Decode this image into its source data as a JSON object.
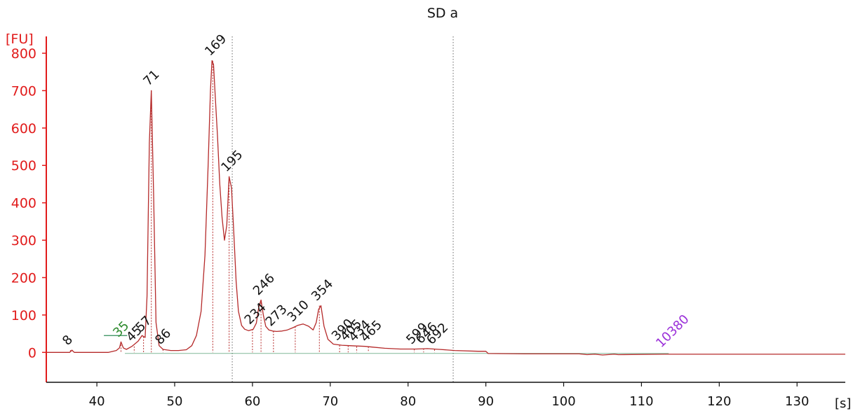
{
  "chart_data": {
    "type": "line",
    "title": "SD a",
    "ylabel": "[FU]",
    "xlabel": "[s]",
    "xlim": [
      33.5,
      136.2
    ],
    "ylim": [
      -80,
      845
    ],
    "x_ticks": [
      40,
      50,
      60,
      70,
      80,
      90,
      100,
      110,
      120,
      130
    ],
    "y_ticks": [
      0,
      100,
      200,
      300,
      400,
      500,
      600,
      700,
      800
    ],
    "colors": {
      "axis": "#e11b1b",
      "trace": "#b52a2a",
      "baseline": "#2e8b57",
      "marker_label": "#2e8b2e",
      "upper_marker_label": "#9b30d9",
      "peak_label": "#111111"
    },
    "series": [
      {
        "x": [
          33.5,
          36.5,
          36.8,
          37.1,
          41.5,
          42.5,
          42.9,
          43.1,
          43.4,
          43.8,
          44.5,
          45.3,
          45.8,
          46.2,
          46.45,
          46.75,
          47.0,
          47.3,
          47.6,
          48.0,
          48.5,
          49.5,
          50.5,
          51.5,
          52.2,
          52.8,
          53.4,
          53.9,
          54.3,
          54.6,
          54.8,
          55.0,
          55.2,
          55.5,
          55.8,
          56.1,
          56.4,
          56.7,
          57.0,
          57.3,
          57.6,
          57.9,
          58.2,
          58.6,
          59.0,
          59.5,
          60.1,
          60.5,
          60.8,
          61.1,
          61.4,
          61.7,
          62.1,
          62.6,
          63.1,
          63.8,
          64.5,
          65.2,
          65.8,
          66.5,
          67.2,
          67.8,
          68.2,
          68.5,
          68.8,
          69.2,
          69.7,
          70.4,
          71.5,
          72.5,
          73.5,
          74.5,
          75.5,
          77.0,
          79.0,
          81.0,
          82.5,
          84.0,
          86.0,
          89.0,
          90.0,
          90.3,
          95.0,
          102.0,
          103.0,
          104.0,
          105.0,
          106.5,
          107.0,
          113.0,
          120.0,
          130.0,
          136.2
        ],
        "y": [
          0,
          0,
          6,
          0,
          0,
          5,
          12,
          28,
          12,
          8,
          16,
          30,
          45,
          40,
          150,
          560,
          700,
          420,
          80,
          18,
          8,
          5,
          5,
          7,
          18,
          45,
          110,
          260,
          500,
          700,
          780,
          770,
          690,
          580,
          450,
          360,
          300,
          340,
          470,
          440,
          320,
          190,
          110,
          72,
          62,
          58,
          62,
          78,
          120,
          140,
          100,
          70,
          60,
          57,
          56,
          57,
          60,
          66,
          72,
          76,
          70,
          60,
          80,
          115,
          125,
          70,
          35,
          22,
          19,
          18,
          17,
          16,
          14,
          11,
          9,
          9,
          10,
          8,
          5,
          3,
          3,
          -3,
          -4,
          -4,
          -6,
          -5,
          -7,
          -5,
          -6,
          -5,
          -5,
          -5,
          -5
        ]
      }
    ],
    "peaks": [
      {
        "label": "8",
        "x": 36.6,
        "y": 6
      },
      {
        "label": "35",
        "x": 43.1,
        "y": 28
      },
      {
        "label": "45",
        "x": 44.8,
        "y": 16
      },
      {
        "label": "57",
        "x": 46.0,
        "y": 42
      },
      {
        "label": "71",
        "x": 47.0,
        "y": 700
      },
      {
        "label": "86",
        "x": 48.5,
        "y": 8
      },
      {
        "label": "169",
        "x": 54.9,
        "y": 780
      },
      {
        "label": "195",
        "x": 57.0,
        "y": 470
      },
      {
        "label": "234",
        "x": 60.0,
        "y": 62
      },
      {
        "label": "246",
        "x": 61.1,
        "y": 140
      },
      {
        "label": "273",
        "x": 62.7,
        "y": 57
      },
      {
        "label": "310",
        "x": 65.5,
        "y": 69
      },
      {
        "label": "354",
        "x": 68.6,
        "y": 125
      },
      {
        "label": "390",
        "x": 71.2,
        "y": 19
      },
      {
        "label": "405",
        "x": 72.3,
        "y": 18
      },
      {
        "label": "434",
        "x": 73.4,
        "y": 16
      },
      {
        "label": "465",
        "x": 74.9,
        "y": 15
      },
      {
        "label": "599",
        "x": 80.8,
        "y": 9
      },
      {
        "label": "646",
        "x": 82.0,
        "y": 10
      },
      {
        "label": "692",
        "x": 83.4,
        "y": 8
      },
      {
        "label": "10380",
        "x": 112.9,
        "y": 0
      }
    ],
    "markers": [
      {
        "label": "35",
        "x": 43.1
      },
      {
        "label": "10380",
        "x": 112.9
      }
    ],
    "dotted_lines_x": [
      57.4,
      85.8
    ],
    "grid": false,
    "legend": "none"
  }
}
